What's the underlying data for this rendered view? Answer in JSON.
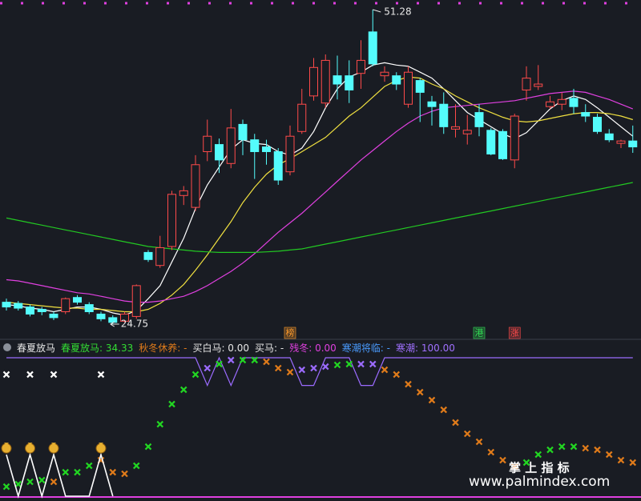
{
  "chart_data": [
    {
      "type": "candlestick",
      "up_color": "#ff4a4a",
      "down_color": "#54fcfc",
      "ylim": [
        24.55,
        52.09
      ],
      "open": [
        26.6,
        26.5,
        26.2,
        26.0,
        25.6,
        25.8,
        27.0,
        26.4,
        25.6,
        25.3,
        25.0,
        25.4,
        30.8,
        29.7,
        31.3,
        35.6,
        34.6,
        39.3,
        39.9,
        38.3,
        41.6,
        40.3,
        39.7,
        39.3,
        37.6,
        41.0,
        44.0,
        43.4,
        45.7,
        45.7,
        45.9,
        49.4,
        45.7,
        45.7,
        43.3,
        45.3,
        43.5,
        43.3,
        41.2,
        40.8,
        42.6,
        41.1,
        41.0,
        38.6,
        44.5,
        44.8,
        43.1,
        43.3,
        43.8,
        42.6,
        42.2,
        40.8,
        40.0,
        40.2
      ],
      "high": [
        26.9,
        26.7,
        26.4,
        26.2,
        25.8,
        27.0,
        27.2,
        26.6,
        25.8,
        25.5,
        25.8,
        28.1,
        31.0,
        32.2,
        36.0,
        36.4,
        39.0,
        42.0,
        40.4,
        42.9,
        42.0,
        40.8,
        40.3,
        39.6,
        41.5,
        44.6,
        47.2,
        47.5,
        47.4,
        47.0,
        48.7,
        51.28,
        46.5,
        46.0,
        46.5,
        45.5,
        44.0,
        44.3,
        43.3,
        42.4,
        43.3,
        41.3,
        41.2,
        42.5,
        46.5,
        46.6,
        44.0,
        44.3,
        44.6,
        43.3,
        42.5,
        41.2,
        40.3,
        41.5
      ],
      "low": [
        25.9,
        25.9,
        25.4,
        25.5,
        25.1,
        25.6,
        26.4,
        25.6,
        25.0,
        24.75,
        24.9,
        25.2,
        30.0,
        29.5,
        31.0,
        34.8,
        34.3,
        38.5,
        37.5,
        37.9,
        39.0,
        37.0,
        38.2,
        36.5,
        37.3,
        40.8,
        43.6,
        43.0,
        43.7,
        43.4,
        44.6,
        46.5,
        45.2,
        44.5,
        43.0,
        41.8,
        41.5,
        40.8,
        40.5,
        39.9,
        40.6,
        39.0,
        38.6,
        37.9,
        43.6,
        44.5,
        42.9,
        42.8,
        42.5,
        41.8,
        40.8,
        40.1,
        39.6,
        39.2
      ],
      "close": [
        26.2,
        26.1,
        25.6,
        25.8,
        25.3,
        26.9,
        26.6,
        25.8,
        25.2,
        24.9,
        25.6,
        28.0,
        30.2,
        31.2,
        35.7,
        36.0,
        38.2,
        40.6,
        38.6,
        41.3,
        40.3,
        39.3,
        39.3,
        36.9,
        40.6,
        43.3,
        46.4,
        47.0,
        45.0,
        44.5,
        47.0,
        46.7,
        46.0,
        45.0,
        46.0,
        44.3,
        43.1,
        41.4,
        41.4,
        41.1,
        41.4,
        39.1,
        38.7,
        42.3,
        45.5,
        45.0,
        43.5,
        43.7,
        43.1,
        42.3,
        41.0,
        40.3,
        40.2,
        39.7
      ],
      "series": [
        {
          "color": "#ffffff",
          "values": [
            26.4,
            26.3,
            26.1,
            26.0,
            25.8,
            26.0,
            26.2,
            26.2,
            26.0,
            25.7,
            25.5,
            25.9,
            26.9,
            28.0,
            30.0,
            32.0,
            34.5,
            36.5,
            38.0,
            39.5,
            40.3,
            40.0,
            39.9,
            39.3,
            39.0,
            39.6,
            41.0,
            43.0,
            44.6,
            45.6,
            46.0,
            46.6,
            46.8,
            46.6,
            46.5,
            46.0,
            45.5,
            44.6,
            43.6,
            42.6,
            42.0,
            41.4,
            40.8,
            40.4,
            40.9,
            41.9,
            42.9,
            43.6,
            44.0,
            43.7,
            43.0,
            42.2,
            41.4,
            40.6
          ]
        },
        {
          "color": "#f0e040",
          "values": [
            26.6,
            26.5,
            26.4,
            26.3,
            26.2,
            26.1,
            26.1,
            26.0,
            26.0,
            25.9,
            25.8,
            25.8,
            26.0,
            26.5,
            27.2,
            28.1,
            29.3,
            30.6,
            32.0,
            33.4,
            35.0,
            36.3,
            37.4,
            38.2,
            38.7,
            39.3,
            39.9,
            40.5,
            41.4,
            42.3,
            43.0,
            43.9,
            44.8,
            45.3,
            45.6,
            45.5,
            45.0,
            44.6,
            44.0,
            43.5,
            43.0,
            42.6,
            42.2,
            41.9,
            41.8,
            41.9,
            42.1,
            42.3,
            42.5,
            42.6,
            42.6,
            42.5,
            42.3,
            42.0
          ]
        },
        {
          "color": "#e040e0",
          "values": [
            28.5,
            28.4,
            28.2,
            28.0,
            27.8,
            27.6,
            27.4,
            27.3,
            27.1,
            26.9,
            26.7,
            26.6,
            26.6,
            26.7,
            26.9,
            27.1,
            27.5,
            28.0,
            28.6,
            29.2,
            29.9,
            30.7,
            31.6,
            32.5,
            33.3,
            34.1,
            35.0,
            35.9,
            36.8,
            37.7,
            38.6,
            39.4,
            40.2,
            41.0,
            41.7,
            42.3,
            42.7,
            43.0,
            43.1,
            43.2,
            43.3,
            43.4,
            43.5,
            43.6,
            43.8,
            44.0,
            44.2,
            44.3,
            44.4,
            44.3,
            44.0,
            43.7,
            43.3,
            42.9
          ]
        },
        {
          "color": "#22c822",
          "values": [
            33.7,
            33.5,
            33.3,
            33.1,
            32.9,
            32.7,
            32.5,
            32.3,
            32.1,
            31.9,
            31.7,
            31.5,
            31.3,
            31.2,
            31.1,
            31.0,
            30.9,
            30.85,
            30.8,
            30.8,
            30.8,
            30.8,
            30.85,
            30.9,
            31.0,
            31.1,
            31.3,
            31.5,
            31.7,
            31.9,
            32.1,
            32.3,
            32.5,
            32.7,
            32.9,
            33.1,
            33.3,
            33.5,
            33.7,
            33.9,
            34.1,
            34.3,
            34.5,
            34.7,
            34.9,
            35.1,
            35.3,
            35.5,
            35.7,
            35.9,
            36.1,
            36.3,
            36.5,
            36.7
          ]
        }
      ],
      "signals": [
        {
          "label": "榜",
          "index": 24,
          "color": "#ff9a2a"
        },
        {
          "label": "港",
          "index": 40,
          "color": "#33dd55"
        },
        {
          "label": "涨",
          "index": 43,
          "color": "#ff4a4a"
        }
      ]
    },
    {
      "type": "indicator",
      "header": [
        {
          "text": "春夏放马",
          "color": "#e6e6e6"
        },
        {
          "text": "春夏放马: 34.33",
          "color": "#33dd33"
        },
        {
          "text": "秋冬休养: -",
          "color": "#e07b1a"
        },
        {
          "text": "买白马: 0.00",
          "color": "#e6e6e6"
        },
        {
          "text": "买马: -",
          "color": "#e6e6e6"
        },
        {
          "text": "残冬: 0.00",
          "color": "#e040e0"
        },
        {
          "text": "寒潮将临: -",
          "color": "#4a9cff"
        },
        {
          "text": "寒潮: 100.00",
          "color": "#a070ff"
        }
      ],
      "ylim": [
        0,
        100
      ],
      "series": [
        {
          "style": "line",
          "color": "#9b6bff",
          "values": [
            100,
            100,
            100,
            100,
            100,
            100,
            100,
            100,
            100,
            100,
            100,
            100,
            100,
            100,
            100,
            100,
            100,
            80,
            100,
            80,
            100,
            100,
            100,
            100,
            100,
            80,
            80,
            100,
            100,
            100,
            80,
            80,
            100,
            100,
            100,
            100,
            100,
            100,
            100,
            100,
            100,
            100,
            100,
            100,
            100,
            100,
            100,
            100,
            100,
            100,
            100,
            100,
            100,
            100
          ]
        },
        {
          "style": "cross",
          "color": "#ffffff",
          "values": [
            87.9,
            null,
            87.9,
            null,
            87.9,
            null,
            null,
            null,
            87.9,
            null,
            null,
            null,
            null,
            null,
            null,
            null,
            null,
            null,
            null,
            null,
            null,
            null,
            null,
            null,
            null,
            null,
            null,
            null,
            null,
            null,
            null,
            null,
            null,
            null,
            null,
            null,
            null,
            null,
            null,
            null,
            null,
            null,
            null,
            null,
            null,
            null,
            null,
            null,
            null,
            null,
            null,
            null,
            null,
            null
          ]
        },
        {
          "style": "cross",
          "values": [
            6.9,
            8.7,
            10.4,
            11.6,
            10.4,
            17.3,
            17.3,
            22.0,
            26.0,
            17.3,
            16.2,
            22.0,
            35.8,
            52.0,
            66.5,
            76.9,
            87.9,
            92.5,
            95.4,
            98.3,
            98.3,
            98.3,
            97.1,
            92.5,
            89.6,
            91.3,
            92.5,
            93.6,
            94.8,
            95.4,
            95.4,
            95.4,
            91.3,
            87.9,
            80.9,
            75.1,
            69.4,
            62.4,
            53.2,
            45.1,
            39.3,
            31.8,
            26.0,
            21.4,
            24.3,
            30.1,
            33.5,
            35.8,
            35.8,
            34.7,
            33.5,
            30.1,
            26.0,
            24.3
          ],
          "colors": [
            "#22d622",
            "#22d622",
            "#22d622",
            "#22d622",
            "#e07b1a",
            "#22d622",
            "#22d622",
            "#22d622",
            "#e07b1a",
            "#e07b1a",
            "#e07b1a",
            "#22d622",
            "#22d622",
            "#22d622",
            "#22d622",
            "#22d622",
            "#22d622",
            "#9b6bff",
            "#22d622",
            "#9b6bff",
            "#22d622",
            "#22d622",
            "#e07b1a",
            "#e07b1a",
            "#e07b1a",
            "#9b6bff",
            "#9b6bff",
            "#9b6bff",
            "#22d622",
            "#22d622",
            "#9b6bff",
            "#9b6bff",
            "#e07b1a",
            "#e07b1a",
            "#e07b1a",
            "#e07b1a",
            "#e07b1a",
            "#e07b1a",
            "#e07b1a",
            "#e07b1a",
            "#e07b1a",
            "#e07b1a",
            "#e07b1a",
            "#e07b1a",
            "#22d622",
            "#22d622",
            "#22d622",
            "#22d622",
            "#22d622",
            "#e07b1a",
            "#e07b1a",
            "#e07b1a",
            "#e07b1a",
            "#e07b1a"
          ]
        },
        {
          "style": "spike",
          "color": "#ffffff",
          "values": [
            30,
            0,
            30,
            0,
            30,
            0,
            0,
            0,
            30,
            0,
            null,
            null,
            null,
            null,
            null,
            null,
            null,
            null,
            null,
            null,
            null,
            null,
            null,
            null,
            null,
            null,
            null,
            null,
            null,
            null,
            null,
            null,
            null,
            null,
            null,
            null,
            null,
            null,
            null,
            null,
            null,
            null,
            null,
            null,
            null,
            null,
            null,
            null,
            null,
            null,
            null,
            null,
            null,
            null
          ]
        }
      ],
      "watermark": [
        "掌 上 指 标",
        "www.palmindex.com"
      ]
    }
  ]
}
